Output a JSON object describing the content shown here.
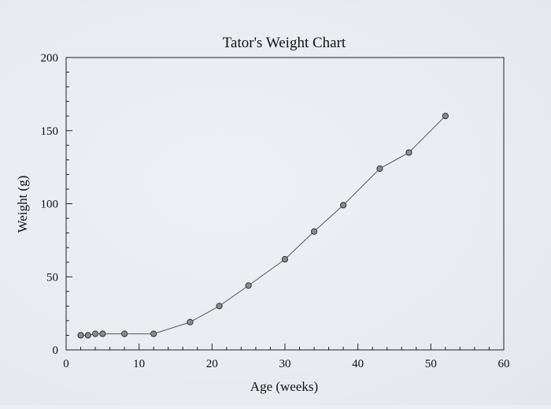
{
  "chart_data": {
    "type": "line",
    "title": "Tator's Weight Chart",
    "xlabel": "Age (weeks)",
    "ylabel": "Weight (g)",
    "xlim": [
      0,
      60
    ],
    "ylim": [
      0,
      200
    ],
    "x_ticks": [
      0,
      10,
      20,
      30,
      40,
      50,
      60
    ],
    "y_ticks": [
      0,
      50,
      100,
      150,
      200
    ],
    "x_minor_step": 2,
    "y_minor_step": 10,
    "grid": false,
    "marker": "circle",
    "line_color": "#555555",
    "marker_fill": "#8a8a8a",
    "marker_stroke": "#333333",
    "series": [
      {
        "x": [
          2,
          3,
          4,
          5,
          8,
          12,
          17,
          21,
          25,
          30,
          34,
          38,
          43,
          47,
          52
        ],
        "y": [
          10,
          10,
          11,
          11,
          11,
          11,
          19,
          30,
          44,
          62,
          81,
          99,
          124,
          135,
          160
        ]
      }
    ]
  }
}
